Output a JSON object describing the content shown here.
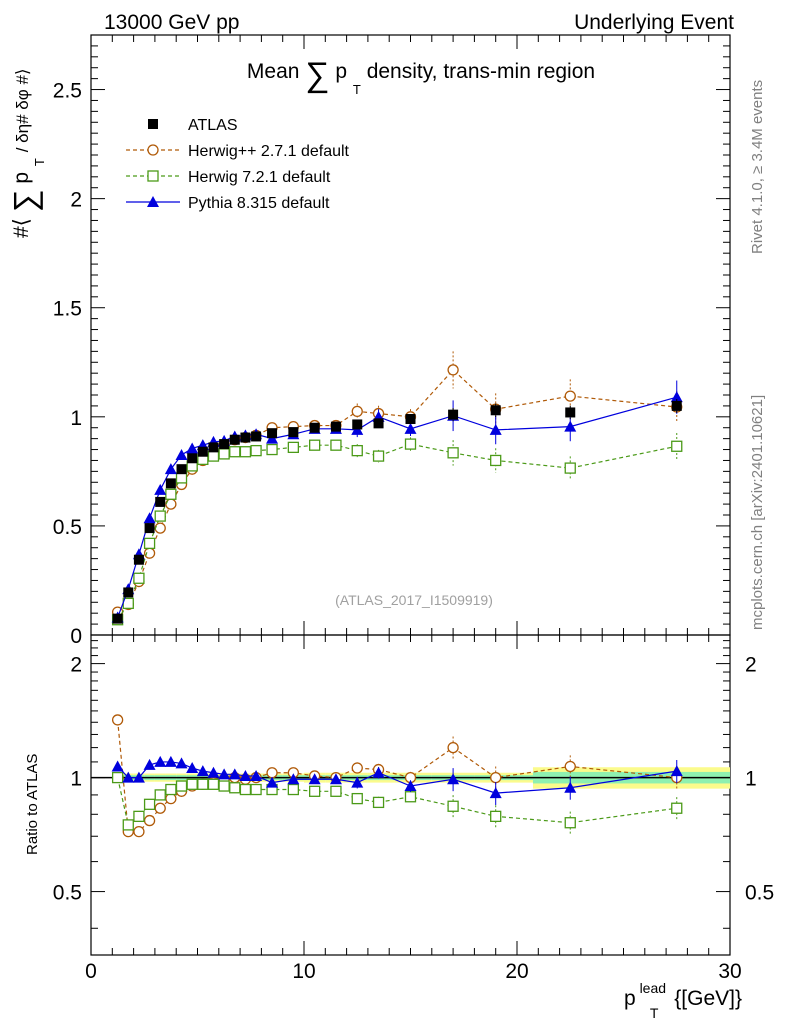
{
  "header": {
    "left": "13000 GeV pp",
    "right": "Underlying Event",
    "side_top": "Rivet 4.1.0, ≥ 3.4M events",
    "side_bottom": "mcplots.cern.ch [arXiv:2401.10621]"
  },
  "chart_data": [
    {
      "type": "scatter",
      "title": "Mean ∑ p_T density, trans-min region",
      "title_parts": {
        "pre": "Mean",
        "sum": "∑",
        "p": "p",
        "sub": "T",
        "post": "density, trans-min region"
      },
      "ylabel": "#⟨ ∑ p_T / δη# δφ #⟩",
      "ylabel_parts": {
        "open": "#⟨",
        "sum": "∑",
        "p": "p",
        "sub": "T",
        "rest": "/ δη# δφ #⟩"
      },
      "watermark": "(ATLAS_2017_I1509919)",
      "xlim": [
        0,
        30
      ],
      "ylim": [
        0,
        2.75
      ],
      "y_ticks": [
        {
          "v": 0,
          "label": "0"
        },
        {
          "v": 0.5,
          "label": "0.5"
        },
        {
          "v": 1,
          "label": "1"
        },
        {
          "v": 1.5,
          "label": "1.5"
        },
        {
          "v": 2,
          "label": "2"
        },
        {
          "v": 2.5,
          "label": "2.5"
        }
      ],
      "x": [
        1.25,
        1.75,
        2.25,
        2.75,
        3.25,
        3.75,
        4.25,
        4.75,
        5.25,
        5.75,
        6.25,
        6.75,
        7.25,
        7.75,
        8.5,
        9.5,
        10.5,
        11.5,
        12.5,
        13.5,
        15.0,
        17.0,
        19.0,
        22.5,
        27.5
      ],
      "series": [
        {
          "name": "ATLAS",
          "marker": "filled-square",
          "color": "#000000",
          "values": [
            0.075,
            0.195,
            0.345,
            0.49,
            0.61,
            0.695,
            0.76,
            0.81,
            0.84,
            0.86,
            0.875,
            0.895,
            0.905,
            0.91,
            0.925,
            0.93,
            0.95,
            0.955,
            0.965,
            0.97,
            0.99,
            1.01,
            1.03,
            1.02,
            1.05
          ]
        },
        {
          "name": "Herwig++ 2.7.1 default",
          "marker": "open-circle",
          "color": "#b05a08",
          "values": [
            0.105,
            0.14,
            0.245,
            0.375,
            0.49,
            0.6,
            0.69,
            0.76,
            0.8,
            0.83,
            0.87,
            0.895,
            0.905,
            0.915,
            0.95,
            0.955,
            0.96,
            0.96,
            1.025,
            1.015,
            1.0,
            1.215,
            1.035,
            1.095,
            1.045
          ]
        },
        {
          "name": "Herwig 7.2.1 default",
          "marker": "open-square",
          "color": "#4b9a18",
          "values": [
            0.07,
            0.145,
            0.26,
            0.42,
            0.545,
            0.645,
            0.72,
            0.775,
            0.805,
            0.82,
            0.83,
            0.84,
            0.84,
            0.845,
            0.85,
            0.86,
            0.87,
            0.87,
            0.845,
            0.82,
            0.875,
            0.835,
            0.8,
            0.765,
            0.865
          ]
        },
        {
          "name": "Pythia 8.315 default",
          "marker": "filled-triangle",
          "color": "#0000dd",
          "values": [
            0.08,
            0.21,
            0.37,
            0.535,
            0.665,
            0.76,
            0.825,
            0.855,
            0.87,
            0.885,
            0.89,
            0.91,
            0.915,
            0.92,
            0.9,
            0.92,
            0.945,
            0.945,
            0.94,
            1.0,
            0.945,
            1.005,
            0.94,
            0.955,
            1.09
          ]
        }
      ]
    },
    {
      "type": "scatter",
      "title": "",
      "ylabel": "Ratio to ATLAS",
      "xlabel": "p_T^lead {[GeV]}",
      "xlabel_parts": {
        "p": "p",
        "sub": "T",
        "sup": "lead",
        "rest": "{[GeV]}"
      },
      "xlim": [
        0,
        30
      ],
      "ylim": [
        0.34,
        2.38
      ],
      "y_scale": "log",
      "y_ticks": [
        {
          "v": 0.5,
          "label": "0.5"
        },
        {
          "v": 1,
          "label": "1"
        },
        {
          "v": 2,
          "label": "2"
        }
      ],
      "x_ticks": [
        {
          "v": 0,
          "label": "0"
        },
        {
          "v": 10,
          "label": "10"
        },
        {
          "v": 20,
          "label": "20"
        },
        {
          "v": 30,
          "label": "30"
        }
      ],
      "x": [
        1.25,
        1.75,
        2.25,
        2.75,
        3.25,
        3.75,
        4.25,
        4.75,
        5.25,
        5.75,
        6.25,
        6.75,
        7.25,
        7.75,
        8.5,
        9.5,
        10.5,
        11.5,
        12.5,
        13.5,
        15.0,
        17.0,
        19.0,
        22.5,
        27.5
      ],
      "series": [
        {
          "name": "Herwig++ 2.7.1 default",
          "marker": "open-circle",
          "color": "#b05a08",
          "values": [
            1.42,
            0.72,
            0.72,
            0.77,
            0.83,
            0.88,
            0.92,
            0.95,
            0.96,
            0.97,
            0.99,
            1.0,
            0.99,
            1.0,
            1.03,
            1.03,
            1.01,
            1.0,
            1.06,
            1.05,
            1.0,
            1.2,
            1.0,
            1.07,
            1.0
          ]
        },
        {
          "name": "Herwig 7.2.1 default",
          "marker": "open-square",
          "color": "#4b9a18",
          "values": [
            1.0,
            0.75,
            0.79,
            0.85,
            0.9,
            0.93,
            0.95,
            0.96,
            0.96,
            0.96,
            0.95,
            0.94,
            0.93,
            0.93,
            0.93,
            0.93,
            0.92,
            0.92,
            0.88,
            0.86,
            0.89,
            0.84,
            0.79,
            0.76,
            0.83
          ]
        },
        {
          "name": "Pythia 8.315 default",
          "marker": "filled-triangle",
          "color": "#0000dd",
          "values": [
            1.07,
            1.0,
            1.0,
            1.08,
            1.1,
            1.1,
            1.09,
            1.06,
            1.04,
            1.03,
            1.02,
            1.02,
            1.01,
            1.01,
            0.97,
            0.99,
            0.99,
            0.99,
            0.97,
            1.03,
            0.95,
            0.99,
            0.91,
            0.94,
            1.04
          ]
        }
      ]
    }
  ]
}
